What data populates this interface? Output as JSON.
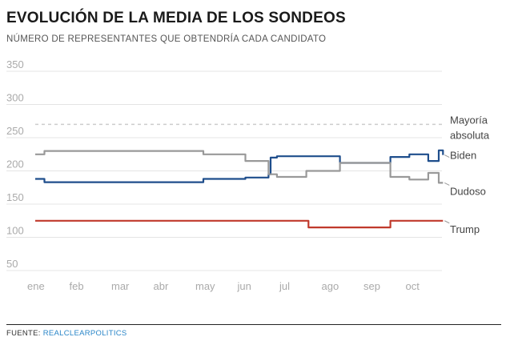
{
  "title": "EVOLUCIÓN DE LA MEDIA DE LOS SONDEOS",
  "subtitle": "NÚMERO DE REPRESENTANTES QUE OBTENDRÍA CADA CANDIDATO",
  "footer": {
    "prefix": "FUENTE: ",
    "source": "REALCLEARPOLITICS"
  },
  "colors": {
    "biden": "#1f4e8c",
    "trump": "#c0392b",
    "dudoso": "#999999",
    "majority": "#cccccc"
  },
  "chart_data": {
    "type": "line",
    "xlabel": "",
    "ylabel": "",
    "ylim": [
      40,
      360
    ],
    "xlim": [
      0,
      10
    ],
    "grid": true,
    "x_ticks": [
      "ene",
      "feb",
      "mar",
      "abr",
      "may",
      "jun",
      "jul",
      "ago",
      "sep",
      "oct"
    ],
    "y_ticks": [
      50,
      100,
      150,
      200,
      250,
      300,
      350
    ],
    "reference_line": {
      "label_line1": "Mayoría",
      "label_line2": "absoluta",
      "value": 270
    },
    "series": [
      {
        "name": "Biden",
        "color": "#1f4e8c",
        "points": [
          [
            0,
            188
          ],
          [
            0.22,
            188
          ],
          [
            0.22,
            183
          ],
          [
            4.0,
            183
          ],
          [
            4.0,
            188
          ],
          [
            5.0,
            188
          ],
          [
            5.0,
            190
          ],
          [
            5.55,
            190
          ],
          [
            5.55,
            195
          ],
          [
            5.6,
            195
          ],
          [
            5.6,
            220
          ],
          [
            5.75,
            220
          ],
          [
            5.75,
            222
          ],
          [
            7.25,
            222
          ],
          [
            7.25,
            212
          ],
          [
            8.45,
            212
          ],
          [
            8.45,
            221
          ],
          [
            8.9,
            221
          ],
          [
            8.9,
            225
          ],
          [
            9.35,
            225
          ],
          [
            9.35,
            215
          ],
          [
            9.6,
            215
          ],
          [
            9.6,
            231
          ],
          [
            9.7,
            231
          ],
          [
            9.7,
            224
          ]
        ]
      },
      {
        "name": "Dudoso",
        "color": "#999999",
        "points": [
          [
            0,
            225
          ],
          [
            0.22,
            225
          ],
          [
            0.22,
            230
          ],
          [
            4.0,
            230
          ],
          [
            4.0,
            225
          ],
          [
            5.0,
            225
          ],
          [
            5.0,
            215
          ],
          [
            5.55,
            215
          ],
          [
            5.55,
            195
          ],
          [
            5.75,
            195
          ],
          [
            5.75,
            191
          ],
          [
            6.45,
            191
          ],
          [
            6.45,
            200
          ],
          [
            7.25,
            200
          ],
          [
            7.25,
            212
          ],
          [
            8.45,
            212
          ],
          [
            8.45,
            191
          ],
          [
            8.9,
            191
          ],
          [
            8.9,
            187
          ],
          [
            9.35,
            187
          ],
          [
            9.35,
            197
          ],
          [
            9.6,
            197
          ],
          [
            9.6,
            182
          ],
          [
            9.7,
            182
          ]
        ]
      },
      {
        "name": "Trump",
        "color": "#c0392b",
        "points": [
          [
            0,
            125
          ],
          [
            6.5,
            125
          ],
          [
            6.5,
            115
          ],
          [
            8.45,
            115
          ],
          [
            8.45,
            125
          ],
          [
            9.7,
            125
          ]
        ]
      }
    ]
  }
}
